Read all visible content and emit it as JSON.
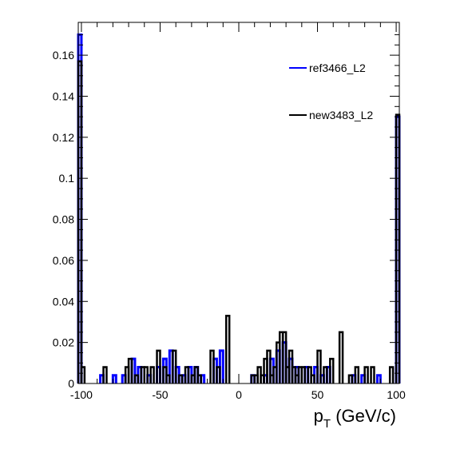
{
  "chart_data": {
    "type": "histogram-step",
    "title": "",
    "xlabel": "p_T (GeV/c)",
    "xlabel_main": "p",
    "xlabel_sub": "T",
    "xlabel_rest": " (GeV/c)",
    "ylabel": "",
    "xlim": [
      -102,
      102
    ],
    "ylim": [
      0,
      0.176
    ],
    "bin_width": 2,
    "x_ticks": [
      {
        "value": -100,
        "label": "-100"
      },
      {
        "value": -50,
        "label": "-50"
      },
      {
        "value": 0,
        "label": "0"
      },
      {
        "value": 50,
        "label": "50"
      },
      {
        "value": 100,
        "label": "100"
      }
    ],
    "y_ticks": [
      {
        "value": 0,
        "label": "0"
      },
      {
        "value": 0.02,
        "label": "0.02"
      },
      {
        "value": 0.04,
        "label": "0.04"
      },
      {
        "value": 0.06,
        "label": "0.06"
      },
      {
        "value": 0.08,
        "label": "0.08"
      },
      {
        "value": 0.1,
        "label": "0.1"
      },
      {
        "value": 0.12,
        "label": "0.12"
      },
      {
        "value": 0.14,
        "label": "0.14"
      },
      {
        "value": 0.16,
        "label": "0.16"
      }
    ],
    "grid": false,
    "legend_position": "top-right",
    "series": [
      {
        "name": "ref3466_L2",
        "color": "#0000ff",
        "bins": [
          {
            "x": -101,
            "y": 0.17
          },
          {
            "x": -87,
            "y": 0.004
          },
          {
            "x": -79,
            "y": 0.004
          },
          {
            "x": -73,
            "y": 0.004
          },
          {
            "x": -67,
            "y": 0.012
          },
          {
            "x": -63,
            "y": 0.008
          },
          {
            "x": -57,
            "y": 0.004
          },
          {
            "x": -51,
            "y": 0.008
          },
          {
            "x": -47,
            "y": 0.012
          },
          {
            "x": -43,
            "y": 0.016
          },
          {
            "x": -39,
            "y": 0.008
          },
          {
            "x": -35,
            "y": 0.004
          },
          {
            "x": -31,
            "y": 0.008
          },
          {
            "x": -27,
            "y": 0.008
          },
          {
            "x": -23,
            "y": 0.004
          },
          {
            "x": -15,
            "y": 0.012
          },
          {
            "x": -11,
            "y": 0.016
          },
          {
            "x": 9,
            "y": 0.004
          },
          {
            "x": 17,
            "y": 0.004
          },
          {
            "x": 21,
            "y": 0.012
          },
          {
            "x": 25,
            "y": 0.016
          },
          {
            "x": 29,
            "y": 0.02
          },
          {
            "x": 33,
            "y": 0.012
          },
          {
            "x": 37,
            "y": 0.008
          },
          {
            "x": 43,
            "y": 0.008
          },
          {
            "x": 49,
            "y": 0.008
          },
          {
            "x": 53,
            "y": 0.004
          },
          {
            "x": 57,
            "y": 0.008
          },
          {
            "x": 73,
            "y": 0.004
          },
          {
            "x": 79,
            "y": 0.004
          },
          {
            "x": 89,
            "y": 0.004
          },
          {
            "x": 101,
            "y": 0.13
          }
        ]
      },
      {
        "name": "new3483_L2",
        "color": "#000000",
        "bins": [
          {
            "x": -101,
            "y": 0.157
          },
          {
            "x": -99,
            "y": 0.008
          },
          {
            "x": -85,
            "y": 0.008
          },
          {
            "x": -71,
            "y": 0.008
          },
          {
            "x": -69,
            "y": 0.012
          },
          {
            "x": -65,
            "y": 0.004
          },
          {
            "x": -61,
            "y": 0.008
          },
          {
            "x": -59,
            "y": 0.008
          },
          {
            "x": -55,
            "y": 0.008
          },
          {
            "x": -51,
            "y": 0.016
          },
          {
            "x": -47,
            "y": 0.008
          },
          {
            "x": -45,
            "y": 0.004
          },
          {
            "x": -41,
            "y": 0.016
          },
          {
            "x": -37,
            "y": 0.004
          },
          {
            "x": -33,
            "y": 0.008
          },
          {
            "x": -29,
            "y": 0.004
          },
          {
            "x": -27,
            "y": 0.008
          },
          {
            "x": -25,
            "y": 0.004
          },
          {
            "x": -17,
            "y": 0.016
          },
          {
            "x": -13,
            "y": 0.008
          },
          {
            "x": -7,
            "y": 0.033
          },
          {
            "x": 9,
            "y": 0.004
          },
          {
            "x": 11,
            "y": 0.004
          },
          {
            "x": 13,
            "y": 0.008
          },
          {
            "x": 15,
            "y": 0.004
          },
          {
            "x": 17,
            "y": 0.012
          },
          {
            "x": 19,
            "y": 0.016
          },
          {
            "x": 21,
            "y": 0.004
          },
          {
            "x": 23,
            "y": 0.008
          },
          {
            "x": 25,
            "y": 0.02
          },
          {
            "x": 27,
            "y": 0.025
          },
          {
            "x": 29,
            "y": 0.025
          },
          {
            "x": 31,
            "y": 0.008
          },
          {
            "x": 33,
            "y": 0.016
          },
          {
            "x": 35,
            "y": 0.008
          },
          {
            "x": 37,
            "y": 0.004
          },
          {
            "x": 39,
            "y": 0.008
          },
          {
            "x": 41,
            "y": 0.008
          },
          {
            "x": 45,
            "y": 0.008
          },
          {
            "x": 47,
            "y": 0.004
          },
          {
            "x": 51,
            "y": 0.016
          },
          {
            "x": 55,
            "y": 0.008
          },
          {
            "x": 59,
            "y": 0.012
          },
          {
            "x": 65,
            "y": 0.025
          },
          {
            "x": 71,
            "y": 0.004
          },
          {
            "x": 75,
            "y": 0.008
          },
          {
            "x": 81,
            "y": 0.008
          },
          {
            "x": 85,
            "y": 0.008
          },
          {
            "x": 97,
            "y": 0.008
          },
          {
            "x": 101,
            "y": 0.131
          }
        ]
      }
    ]
  }
}
